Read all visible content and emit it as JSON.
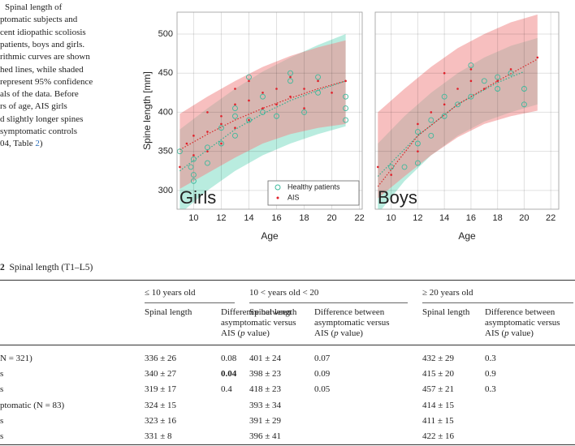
{
  "caption": {
    "lines": [
      "Spinal length of",
      "ptomatic subjects and",
      "cent idiopathic scoliosis",
      "patients, boys and girls.",
      "rithmic curves are shown",
      "hed lines, while shaded",
      "represent 95% confidence",
      "als of the data. Before",
      "rs of age, AIS girls",
      "d slightly longer spines",
      "symptomatic controls"
    ],
    "last_start": "04, Table ",
    "last_link": "2",
    "last_end": ")"
  },
  "chart_data": [
    {
      "type": "scatter",
      "title": "Girls",
      "xlabel": "Age",
      "ylabel": "Spine length [mm]",
      "xlim": [
        8.8,
        22.2
      ],
      "ylim": [
        276,
        528
      ],
      "xticks": [
        10,
        12,
        14,
        16,
        18,
        20,
        22
      ],
      "yticks": [
        300,
        350,
        400,
        450,
        500
      ],
      "show_ytick_labels": true,
      "grid": true,
      "legend": "lower right",
      "bands": [
        {
          "color": "#7fdcc4",
          "x": [
            9,
            11,
            13,
            15,
            17,
            19,
            21
          ],
          "lower": [
            270,
            300,
            325,
            345,
            360,
            372,
            382
          ],
          "upper": [
            378,
            405,
            430,
            452,
            470,
            486,
            500
          ]
        },
        {
          "color": "#f08a8a",
          "x": [
            9,
            11,
            13,
            15,
            17,
            19,
            21
          ],
          "lower": [
            302,
            322,
            342,
            360,
            372,
            380,
            385
          ],
          "upper": [
            398,
            420,
            440,
            458,
            472,
            483,
            492
          ]
        }
      ],
      "fits": [
        {
          "color": "#2fae8f",
          "x": [
            9,
            11,
            13,
            15,
            17,
            19,
            21
          ],
          "values": [
            325,
            352,
            378,
            398,
            415,
            428,
            440
          ]
        },
        {
          "color": "#d62728",
          "x": [
            9,
            11,
            13,
            15,
            17,
            19,
            21
          ],
          "values": [
            352,
            372,
            390,
            405,
            418,
            430,
            440
          ]
        }
      ],
      "series": [
        {
          "name": "Healthy patients",
          "color": "#3cb99c",
          "marker": "circle",
          "x": [
            9,
            9.8,
            10,
            10,
            10,
            11,
            11,
            12,
            12,
            13,
            13,
            13,
            14,
            14,
            15,
            15,
            16,
            17,
            17,
            18,
            19,
            19,
            21,
            21,
            21
          ],
          "values": [
            350,
            330,
            320,
            312,
            340,
            335,
            355,
            360,
            380,
            370,
            395,
            405,
            445,
            390,
            420,
            400,
            395,
            450,
            440,
            400,
            445,
            425,
            420,
            405,
            390
          ]
        },
        {
          "name": "AIS",
          "color": "#e0202a",
          "marker": "dot",
          "x": [
            9,
            9.5,
            10,
            10,
            11,
            11,
            11,
            12,
            12,
            12,
            13,
            13,
            13,
            14,
            14,
            14,
            15,
            15,
            16,
            16,
            17,
            17,
            18,
            18,
            19,
            20,
            21
          ],
          "values": [
            330,
            360,
            345,
            370,
            375,
            400,
            350,
            385,
            360,
            395,
            410,
            380,
            430,
            415,
            390,
            440,
            425,
            405,
            430,
            410,
            420,
            445,
            430,
            405,
            440,
            425,
            440
          ]
        }
      ]
    },
    {
      "type": "scatter",
      "title": "Boys",
      "xlabel": "Age",
      "xlim": [
        8.8,
        22.6
      ],
      "ylim": [
        276,
        528
      ],
      "xticks": [
        10,
        12,
        14,
        16,
        18,
        20,
        22
      ],
      "yticks": [
        300,
        350,
        400,
        450,
        500
      ],
      "show_ytick_labels": false,
      "grid": true,
      "bands": [
        {
          "color": "#7fdcc4",
          "x": [
            9,
            11,
            13,
            15,
            17,
            19,
            21
          ],
          "lower": [
            270,
            312,
            345,
            370,
            388,
            400,
            410
          ],
          "upper": [
            360,
            395,
            425,
            450,
            470,
            485,
            495
          ]
        },
        {
          "color": "#f08a8a",
          "x": [
            9,
            11,
            13,
            15,
            17,
            19,
            21
          ],
          "lower": [
            290,
            318,
            345,
            368,
            385,
            395,
            402
          ],
          "upper": [
            400,
            430,
            458,
            482,
            500,
            515,
            525
          ]
        }
      ],
      "fits": [
        {
          "color": "#2fae8f",
          "x": [
            9,
            12,
            15,
            18,
            20
          ],
          "values": [
            318,
            370,
            410,
            438,
            452
          ]
        },
        {
          "color": "#d62728",
          "x": [
            9,
            12,
            15,
            18,
            21
          ],
          "values": [
            305,
            370,
            410,
            440,
            468
          ]
        }
      ],
      "series": [
        {
          "color": "#3cb99c",
          "marker": "circle",
          "x": [
            10,
            11,
            12,
            12,
            12,
            13,
            13,
            14,
            14,
            15,
            16,
            16,
            17,
            18,
            18,
            19,
            20,
            20
          ],
          "values": [
            330,
            330,
            360,
            375,
            335,
            390,
            370,
            420,
            395,
            410,
            460,
            420,
            440,
            445,
            430,
            450,
            410,
            430
          ]
        },
        {
          "color": "#e0202a",
          "marker": "dot",
          "x": [
            9,
            10,
            12,
            12,
            13,
            14,
            14,
            15,
            16,
            16,
            17,
            18,
            19,
            21
          ],
          "values": [
            330,
            320,
            350,
            385,
            400,
            450,
            410,
            430,
            455,
            440,
            430,
            440,
            455,
            470
          ]
        }
      ]
    }
  ],
  "table": {
    "number": "2",
    "title": "Spinal length (T1–L5)",
    "groups": [
      "≤ 10 years old",
      "10 < years old < 20",
      "≥ 20 years old"
    ],
    "sub_length": "Spinal length",
    "diff_line1": "Difference between",
    "diff_line2": "asymptomatic versus",
    "diff_a": "AIS (",
    "diff_p": "p",
    "diff_b": " value)",
    "rows": [
      {
        "label": "N = 321)",
        "cells": [
          "336 ± 26",
          "0.08",
          "401 ± 24",
          "0.07",
          "432 ± 29",
          "0.3"
        ]
      },
      {
        "label": "s",
        "cells": [
          "340 ± 27",
          "0.04",
          "398 ± 23",
          "0.09",
          "415 ± 20",
          "0.9"
        ],
        "bold": [
          1
        ]
      },
      {
        "label": "s",
        "cells": [
          "319 ± 17",
          "0.4",
          "418 ± 23",
          "0.05",
          "457 ± 21",
          "0.3"
        ]
      },
      {
        "label": "ptomatic (N = 83)",
        "cells": [
          "324 ± 15",
          null,
          "393 ± 34",
          null,
          "414 ± 15",
          null
        ]
      },
      {
        "label": "s",
        "cells": [
          "323 ± 16",
          null,
          "391 ± 29",
          null,
          "411 ± 15",
          null
        ]
      },
      {
        "label": "s",
        "cells": [
          "331 ± 8",
          null,
          "396 ± 41",
          null,
          "422 ± 16",
          null
        ]
      }
    ]
  }
}
